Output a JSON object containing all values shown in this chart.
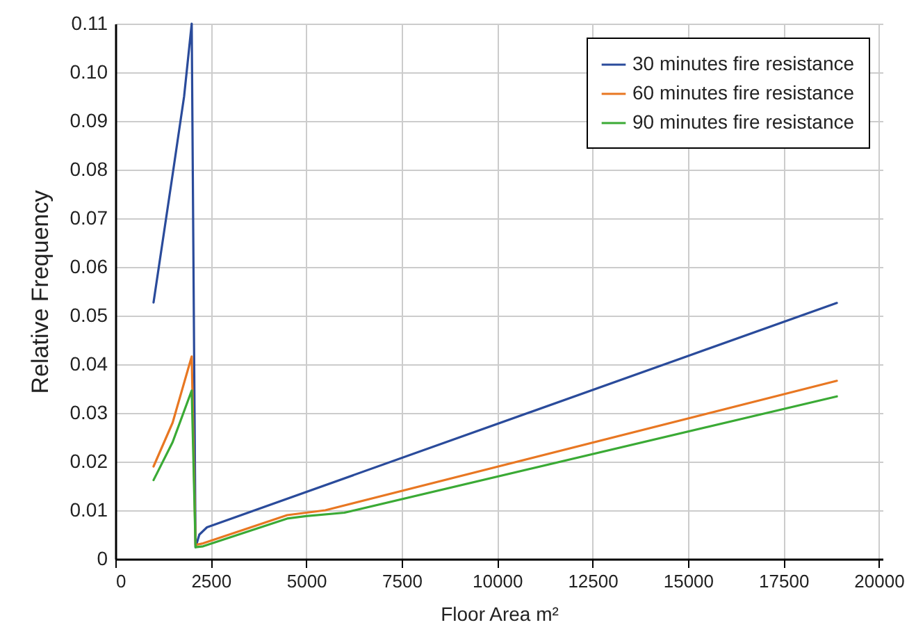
{
  "chart_data": {
    "type": "line",
    "xlabel": "Floor Area m²",
    "ylabel": "Relative Frequency",
    "xlim": [
      0,
      20100
    ],
    "xticks": [
      0,
      2500,
      5000,
      7500,
      10000,
      12500,
      15000,
      17500,
      20000
    ],
    "ylim": [
      0,
      0.11
    ],
    "yticks": [
      0,
      0.01,
      0.02,
      0.03,
      0.04,
      0.05,
      0.06,
      0.07,
      0.08,
      0.09,
      {
        "value": 0.1,
        "label": "0.10"
      },
      0.11
    ],
    "grid": true,
    "legend": "top right",
    "marker": "none",
    "line_style": "solid",
    "series": [
      {
        "name": "30 minutes fire resistance",
        "color": "#2a4b9b",
        "x": [
          1000,
          1500,
          1800,
          2000,
          2100,
          2200,
          2400,
          18900
        ],
        "values": [
          0.0527,
          0.079,
          0.095,
          0.11,
          0.0024,
          0.005,
          0.0065,
          0.0526
        ]
      },
      {
        "name": "60 minutes fire resistance",
        "color": "#e87722",
        "x": [
          1000,
          1500,
          2000,
          2100,
          2300,
          4500,
          5000,
          5500,
          18900
        ],
        "values": [
          0.019,
          0.028,
          0.0416,
          0.0029,
          0.0032,
          0.009,
          0.0095,
          0.01,
          0.0366
        ]
      },
      {
        "name": "90 minutes fire resistance",
        "color": "#3aaa35",
        "x": [
          1000,
          1500,
          2000,
          2100,
          2300,
          4500,
          5000,
          6000,
          18900
        ],
        "values": [
          0.0162,
          0.024,
          0.0346,
          0.0024,
          0.0026,
          0.0083,
          0.0088,
          0.0095,
          0.0334
        ]
      }
    ]
  }
}
